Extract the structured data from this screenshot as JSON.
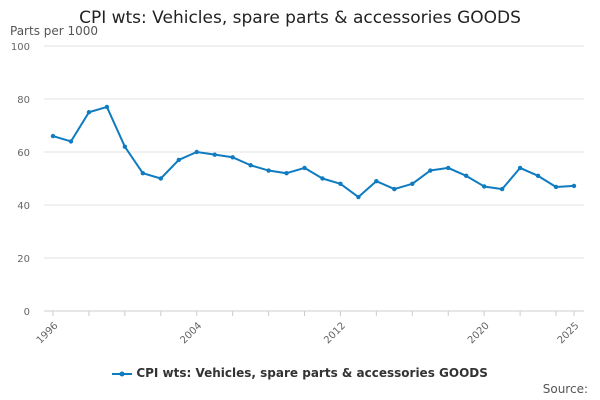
{
  "chart_data": {
    "type": "line",
    "title": "CPI wts: Vehicles, spare parts & accessories GOODS",
    "ylabel": "Parts per 1000",
    "xlabel": "",
    "ylim": [
      0,
      100
    ],
    "yticks": [
      0,
      20,
      40,
      60,
      80,
      100
    ],
    "xlim": [
      1996,
      2025
    ],
    "xtick_labels": [
      "1996",
      "2004",
      "2012",
      "2020",
      "2025"
    ],
    "grid": true,
    "legend_position": "bottom",
    "x": [
      1996,
      1997,
      1998,
      1999,
      2000,
      2001,
      2002,
      2003,
      2004,
      2005,
      2006,
      2007,
      2008,
      2009,
      2010,
      2011,
      2012,
      2013,
      2014,
      2015,
      2016,
      2017,
      2018,
      2019,
      2020,
      2021,
      2022,
      2023,
      2024,
      2025
    ],
    "series": [
      {
        "name": "CPI wts: Vehicles, spare parts & accessories GOODS",
        "color": "#0f7bc0",
        "values": [
          66,
          64,
          75,
          77,
          62,
          52,
          50,
          57,
          60,
          59,
          58,
          55,
          53,
          52,
          54,
          50,
          48,
          43,
          49,
          46,
          48,
          53,
          54,
          51,
          47,
          46,
          54,
          51,
          46.8,
          47.2
        ]
      }
    ],
    "source_label": "Source:"
  }
}
